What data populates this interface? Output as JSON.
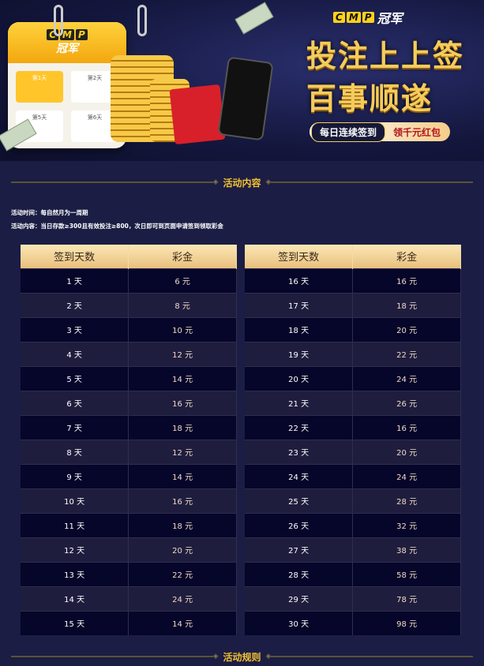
{
  "banner": {
    "brand_logo": "CMP",
    "brand_sub": "冠军",
    "slogan_line1": "投注上上签",
    "slogan_line2": "百事顺遂",
    "pill_left": "每日连续签到",
    "pill_right": "领千元红包",
    "calendar_days": [
      "第1天",
      "第2天",
      "第5天",
      "第6天"
    ]
  },
  "section1": {
    "title": "活动内容"
  },
  "info": {
    "time": "活动时间：每自然月为一周期",
    "content": "活动内容：当日存款≥300且有效投注≥800，次日即可到页面申请签到领取彩金"
  },
  "table": {
    "headers": [
      "签到天数",
      "彩金"
    ],
    "left": [
      [
        "1 天",
        "6 元"
      ],
      [
        "2 天",
        "8 元"
      ],
      [
        "3 天",
        "10 元"
      ],
      [
        "4 天",
        "12 元"
      ],
      [
        "5 天",
        "14 元"
      ],
      [
        "6 天",
        "16 元"
      ],
      [
        "7 天",
        "18 元"
      ],
      [
        "8 天",
        "12 元"
      ],
      [
        "9 天",
        "14 元"
      ],
      [
        "10 天",
        "16 元"
      ],
      [
        "11 天",
        "18 元"
      ],
      [
        "12 天",
        "20 元"
      ],
      [
        "13 天",
        "22 元"
      ],
      [
        "14 天",
        "24 元"
      ],
      [
        "15 天",
        "14 元"
      ]
    ],
    "right": [
      [
        "16 天",
        "16 元"
      ],
      [
        "17 天",
        "18 元"
      ],
      [
        "18 天",
        "20 元"
      ],
      [
        "19 天",
        "22 元"
      ],
      [
        "20 天",
        "24 元"
      ],
      [
        "21 天",
        "26 元"
      ],
      [
        "22 天",
        "16 元"
      ],
      [
        "23 天",
        "20 元"
      ],
      [
        "24 天",
        "24 元"
      ],
      [
        "25 天",
        "28 元"
      ],
      [
        "26 天",
        "32 元"
      ],
      [
        "27 天",
        "38 元"
      ],
      [
        "28 天",
        "58 元"
      ],
      [
        "29 天",
        "78 元"
      ],
      [
        "30 天",
        "98 元"
      ]
    ]
  },
  "section2": {
    "title": "活动规则"
  },
  "colors": {
    "accent_gold": "#f2c230",
    "background": "#1b1d44",
    "header_gold": "#e9c07e"
  }
}
